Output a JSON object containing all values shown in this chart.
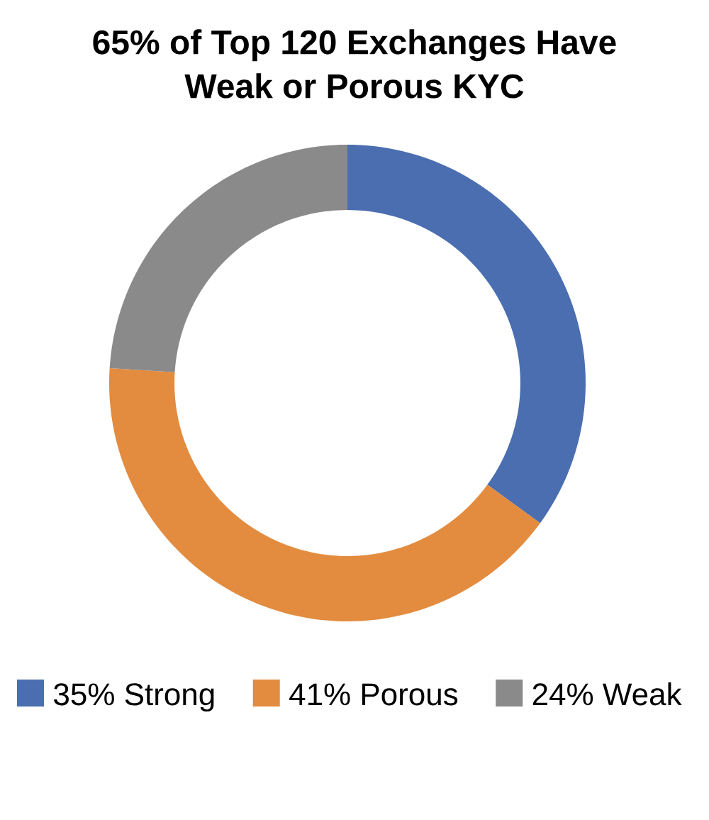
{
  "chart_data": {
    "type": "donut",
    "title": "65% of Top 120 Exchanges Have Weak or Porous KYC",
    "categories": [
      "35% Strong",
      "41% Porous",
      "24% Weak"
    ],
    "values": [
      35,
      41,
      24
    ],
    "colors": [
      "#4a6eb0",
      "#e38b3e",
      "#8a8a8a"
    ],
    "legend": "bottom"
  }
}
